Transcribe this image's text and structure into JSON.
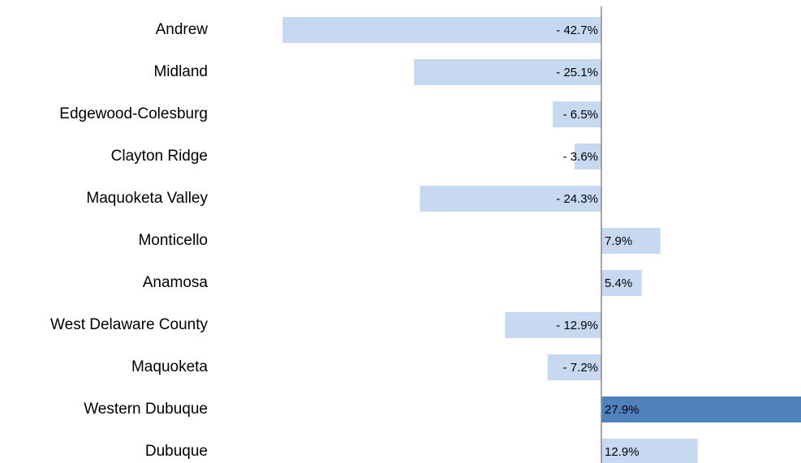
{
  "chart_data": {
    "type": "bar",
    "orientation": "horizontal",
    "categories": [
      "Andrew",
      "Midland",
      "Edgewood-Colesburg",
      "Clayton Ridge",
      "Maquoketa Valley",
      "Monticello",
      "Anamosa",
      "West Delaware County",
      "Maquoketa",
      "Western Dubuque",
      "Dubuque"
    ],
    "values": [
      -42.7,
      -25.1,
      -6.5,
      -3.6,
      -24.3,
      7.9,
      5.4,
      -12.9,
      -7.2,
      27.9,
      12.9
    ],
    "value_labels": [
      "- 42.7%",
      "- 25.1%",
      "- 6.5%",
      "- 3.6%",
      "- 24.3%",
      "7.9%",
      "5.4%",
      "- 12.9%",
      "- 7.2%",
      "27.9%",
      "12.9%"
    ],
    "colors": [
      "#c6d9f1",
      "#c6d9f1",
      "#c6d9f1",
      "#c6d9f1",
      "#c6d9f1",
      "#c6d9f1",
      "#c6d9f1",
      "#c6d9f1",
      "#c6d9f1",
      "#4f81bd",
      "#c6d9f1"
    ]
  }
}
